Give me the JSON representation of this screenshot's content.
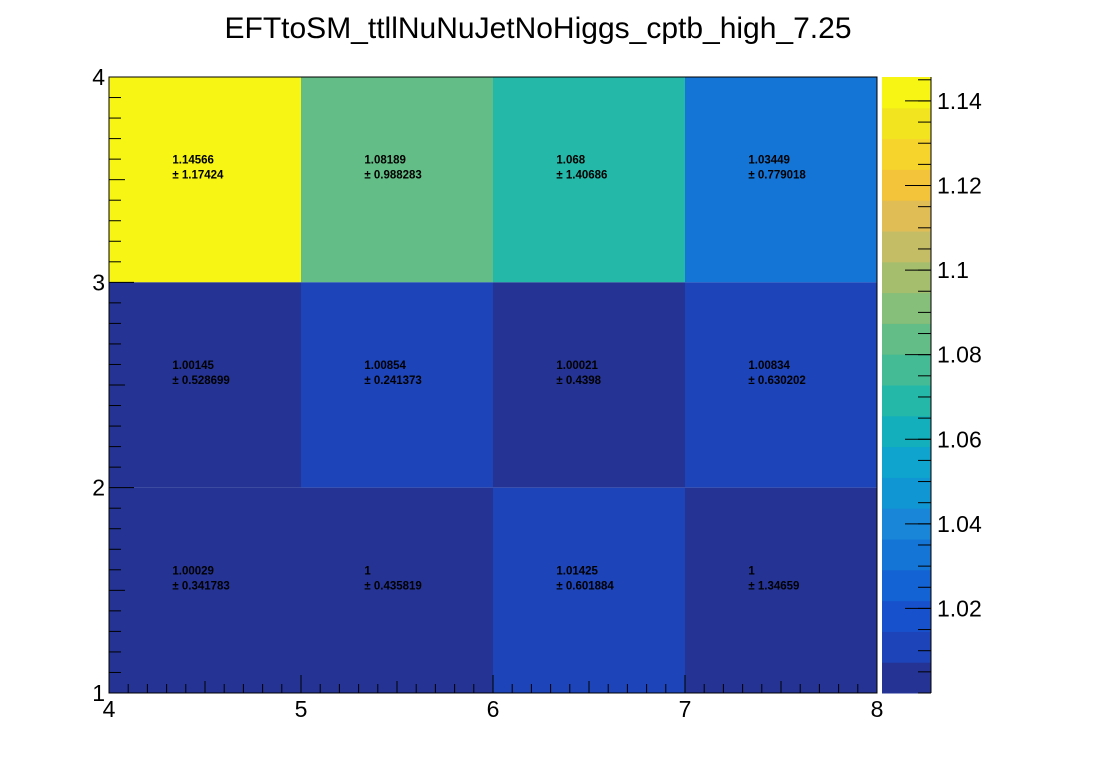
{
  "chart_data": {
    "type": "heatmap",
    "title": "EFTtoSM_ttllNuNuJetNoHiggs_cptb_high_7.25",
    "xlabel": "",
    "ylabel": "",
    "x_edges": [
      4,
      5,
      6,
      7,
      8
    ],
    "y_edges": [
      1,
      2,
      3,
      4
    ],
    "x_tick_labels": [
      "4",
      "5",
      "6",
      "7",
      "8"
    ],
    "y_tick_labels": [
      "1",
      "2",
      "3",
      "4"
    ],
    "zlim": [
      1.0,
      1.14566
    ],
    "colorbar_tick_values": [
      1.02,
      1.04,
      1.06,
      1.08,
      1.1,
      1.12,
      1.14
    ],
    "colorbar_tick_labels": [
      "1.02",
      "1.04",
      "1.06",
      "1.08",
      "1.1",
      "1.12",
      "1.14"
    ],
    "palette": [
      "#253494",
      "#1d44b8",
      "#1752cc",
      "#1463d4",
      "#1475d6",
      "#1a86d8",
      "#1196d4",
      "#0ea4ce",
      "#14afbd",
      "#24b8a8",
      "#44bb95",
      "#62bd86",
      "#86bf79",
      "#a5be6e",
      "#c5bd66",
      "#e1bd55",
      "#f3c339",
      "#f6d42c",
      "#f2e51f",
      "#f6f513"
    ],
    "cells": [
      {
        "x": 4,
        "y": 3,
        "value": 1.14566,
        "value_label": "1.14566",
        "error_label": "± 1.17424"
      },
      {
        "x": 5,
        "y": 3,
        "value": 1.08189,
        "value_label": "1.08189",
        "error_label": "± 0.988283"
      },
      {
        "x": 6,
        "y": 3,
        "value": 1.068,
        "value_label": "1.068",
        "error_label": "± 1.40686"
      },
      {
        "x": 7,
        "y": 3,
        "value": 1.03449,
        "value_label": "1.03449",
        "error_label": "± 0.779018"
      },
      {
        "x": 4,
        "y": 2,
        "value": 1.00145,
        "value_label": "1.00145",
        "error_label": "± 0.528699"
      },
      {
        "x": 5,
        "y": 2,
        "value": 1.00854,
        "value_label": "1.00854",
        "error_label": "± 0.241373"
      },
      {
        "x": 6,
        "y": 2,
        "value": 1.00021,
        "value_label": "1.00021",
        "error_label": "± 0.4398"
      },
      {
        "x": 7,
        "y": 2,
        "value": 1.00834,
        "value_label": "1.00834",
        "error_label": "± 0.630202"
      },
      {
        "x": 4,
        "y": 1,
        "value": 1.00029,
        "value_label": "1.00029",
        "error_label": "± 0.341783"
      },
      {
        "x": 5,
        "y": 1,
        "value": 1,
        "value_label": "1",
        "error_label": "± 0.435819"
      },
      {
        "x": 6,
        "y": 1,
        "value": 1.01425,
        "value_label": "1.01425",
        "error_label": "± 0.601884"
      },
      {
        "x": 7,
        "y": 1,
        "value": 1,
        "value_label": "1",
        "error_label": "± 1.34659"
      }
    ]
  }
}
